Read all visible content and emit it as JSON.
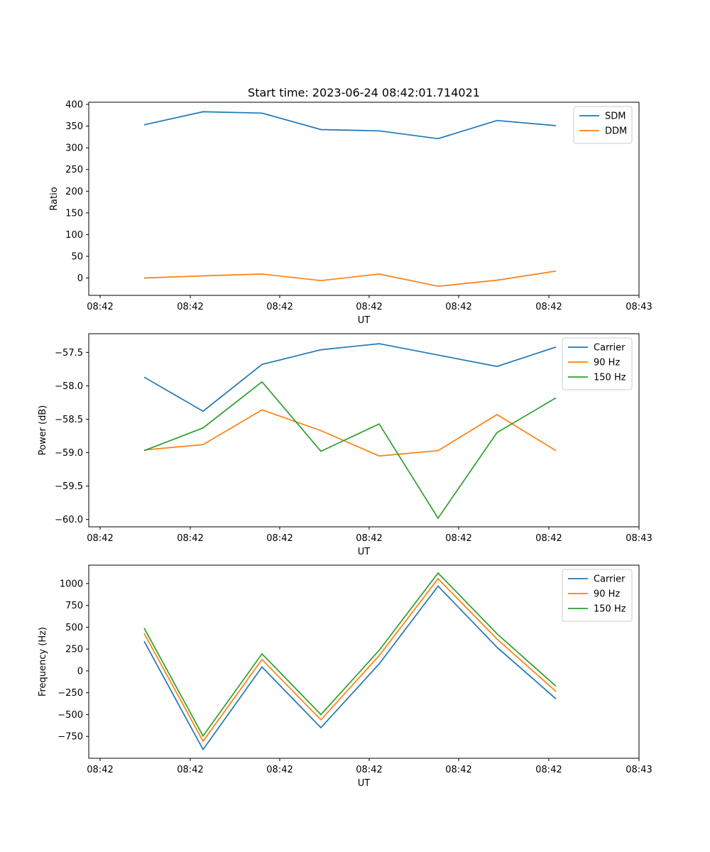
{
  "chart_data": [
    {
      "type": "line",
      "title": "Start time: 2023-06-24 08:42:01.714021",
      "xlabel": "UT",
      "ylabel": "Ratio",
      "x_tick_labels": [
        "08:42",
        "08:42",
        "08:42",
        "08:42",
        "08:42",
        "08:42",
        "08:43"
      ],
      "y_ticks": [
        0,
        50,
        100,
        150,
        200,
        250,
        300,
        350,
        400
      ],
      "y_tick_labels": [
        "0",
        "50",
        "100",
        "150",
        "200",
        "250",
        "300",
        "350",
        "400"
      ],
      "ylim": [
        -40,
        405
      ],
      "legend_position": "top-right",
      "grid": false,
      "series": [
        {
          "name": "SDM",
          "color": "#1f77b4",
          "values": [
            353,
            383,
            380,
            342,
            339,
            321,
            363,
            351
          ]
        },
        {
          "name": "DDM",
          "color": "#ff7f0e",
          "values": [
            0,
            5,
            9,
            -6,
            9,
            -19,
            -5,
            16
          ]
        }
      ]
    },
    {
      "type": "line",
      "title": "",
      "xlabel": "UT",
      "ylabel": "Power (dB)",
      "x_tick_labels": [
        "08:42",
        "08:42",
        "08:42",
        "08:42",
        "08:42",
        "08:42",
        "08:43"
      ],
      "y_ticks": [
        -60.0,
        -59.5,
        -59.0,
        -58.5,
        -58.0,
        -57.5
      ],
      "y_tick_labels": [
        "−60.0",
        "−59.5",
        "−59.0",
        "−58.5",
        "−58.0",
        "−57.5"
      ],
      "ylim": [
        -60.11,
        -57.22
      ],
      "legend_position": "top-right",
      "grid": false,
      "series": [
        {
          "name": "Carrier",
          "color": "#1f77b4",
          "values": [
            -57.87,
            -58.38,
            -57.68,
            -57.46,
            -57.37,
            -57.54,
            -57.71,
            -57.42
          ]
        },
        {
          "name": "90 Hz",
          "color": "#ff7f0e",
          "values": [
            -58.96,
            -58.88,
            -58.36,
            -58.67,
            -59.05,
            -58.97,
            -58.43,
            -58.97
          ]
        },
        {
          "name": "150 Hz",
          "color": "#2ca02c",
          "values": [
            -58.97,
            -58.63,
            -57.94,
            -58.98,
            -58.57,
            -59.98,
            -58.7,
            -58.18
          ]
        }
      ]
    },
    {
      "type": "line",
      "title": "",
      "xlabel": "UT",
      "ylabel": "Frequency (Hz)",
      "x_tick_labels": [
        "08:42",
        "08:42",
        "08:42",
        "08:42",
        "08:42",
        "08:42",
        "08:43"
      ],
      "y_ticks": [
        -750,
        -500,
        -250,
        0,
        250,
        500,
        750,
        1000
      ],
      "y_tick_labels": [
        "−750",
        "−500",
        "−250",
        "0",
        "250",
        "500",
        "750",
        "1000"
      ],
      "ylim": [
        -1000,
        1210
      ],
      "legend_position": "top-right",
      "grid": false,
      "series": [
        {
          "name": "Carrier",
          "color": "#1f77b4",
          "values": [
            340,
            -900,
            45,
            -650,
            80,
            970,
            270,
            -320
          ]
        },
        {
          "name": "90 Hz",
          "color": "#ff7f0e",
          "values": [
            430,
            -805,
            130,
            -560,
            175,
            1055,
            365,
            -235
          ]
        },
        {
          "name": "150 Hz",
          "color": "#2ca02c",
          "values": [
            490,
            -745,
            195,
            -500,
            235,
            1120,
            425,
            -175
          ]
        }
      ]
    }
  ]
}
